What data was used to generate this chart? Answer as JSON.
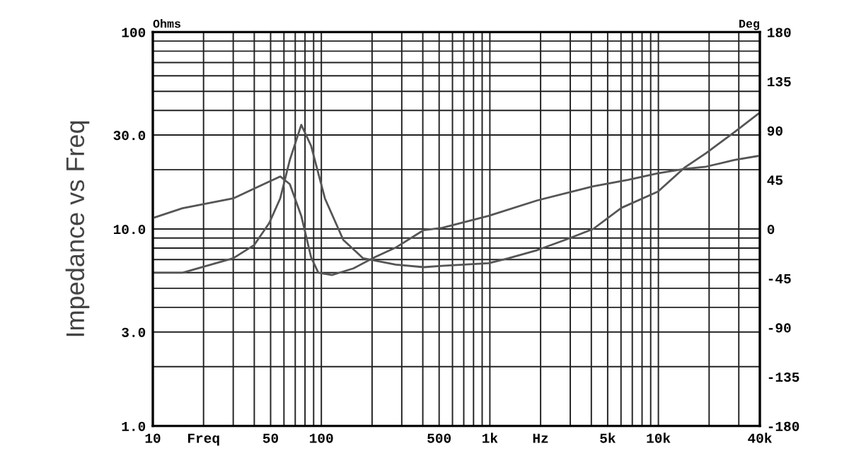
{
  "chart_data": {
    "type": "line",
    "ylabel": "Impedance vs Freq",
    "y2label": "Deg",
    "annotations": [
      "Ohms"
    ],
    "log": "xy",
    "grid": true,
    "marker": "none",
    "line_style": "solid",
    "xlim": [
      10,
      40000
    ],
    "ylim": [
      1,
      100
    ],
    "y2lim": [
      -180,
      180
    ],
    "xticks": [
      10,
      {
        "value": 20,
        "label": "Freq"
      },
      {
        "value": 30,
        "label": null
      },
      {
        "value": 40,
        "label": null
      },
      50,
      {
        "value": 60,
        "label": null
      },
      {
        "value": 70,
        "label": null
      },
      {
        "value": 80,
        "label": null
      },
      {
        "value": 90,
        "label": null
      },
      100,
      {
        "value": 200,
        "label": null
      },
      {
        "value": 300,
        "label": null
      },
      {
        "value": 400,
        "label": null
      },
      500,
      {
        "value": 600,
        "label": null
      },
      {
        "value": 700,
        "label": null
      },
      {
        "value": 800,
        "label": null
      },
      {
        "value": 900,
        "label": null
      },
      {
        "value": 1000,
        "label": "1k"
      },
      {
        "value": 2000,
        "label": "Hz"
      },
      {
        "value": 3000,
        "label": null
      },
      {
        "value": 4000,
        "label": null
      },
      {
        "value": 5000,
        "label": "5k"
      },
      {
        "value": 6000,
        "label": null
      },
      {
        "value": 7000,
        "label": null
      },
      {
        "value": 8000,
        "label": null
      },
      {
        "value": 9000,
        "label": null
      },
      {
        "value": 10000,
        "label": "10k"
      },
      {
        "value": 20000,
        "label": null
      },
      {
        "value": 30000,
        "label": null
      },
      {
        "value": 40000,
        "label": "40k"
      }
    ],
    "yticks": [
      {
        "value": 1,
        "label": "1.0"
      },
      {
        "value": 2,
        "label": null
      },
      {
        "value": 3,
        "label": "3.0"
      },
      {
        "value": 4,
        "label": null
      },
      {
        "value": 5,
        "label": null
      },
      {
        "value": 6,
        "label": null
      },
      {
        "value": 7,
        "label": null
      },
      {
        "value": 8,
        "label": null
      },
      {
        "value": 9,
        "label": null
      },
      {
        "value": 10,
        "label": "10.0"
      },
      {
        "value": 20,
        "label": null
      },
      {
        "value": 30,
        "label": "30.0"
      },
      {
        "value": 40,
        "label": null
      },
      {
        "value": 50,
        "label": null
      },
      {
        "value": 60,
        "label": null
      },
      {
        "value": 70,
        "label": null
      },
      {
        "value": 80,
        "label": null
      },
      {
        "value": 90,
        "label": null
      },
      100
    ],
    "y2ticks": [
      -180,
      -135,
      -90,
      -45,
      0,
      45,
      90,
      135,
      180
    ],
    "series": [
      {
        "color": "#555555",
        "x": [
          10,
          15,
          30,
          40,
          49,
          57,
          65,
          76,
          87,
          105,
          135,
          177,
          276,
          405,
          521,
          984,
          1290,
          1900,
          2790,
          4100,
          6030,
          9950,
          14400,
          19200,
          28200,
          40000
        ],
        "values": [
          6.0,
          6.0,
          7.1,
          8.3,
          10.7,
          14.3,
          22.4,
          33.8,
          26.4,
          14.3,
          8.8,
          7.1,
          6.6,
          6.4,
          6.5,
          6.7,
          7.1,
          7.8,
          8.8,
          10,
          12.8,
          15.5,
          20.6,
          24.3,
          31,
          39
        ]
      },
      {
        "color": "#555555",
        "axis": "y2",
        "x": [
          10,
          15,
          30,
          40,
          57,
          65,
          76,
          87,
          96,
          116,
          155,
          206,
          276,
          405,
          521,
          984,
          1900,
          4100,
          6640,
          9950,
          14400,
          19200,
          28200,
          40000
        ],
        "values": [
          10,
          19,
          28,
          37,
          48,
          41,
          12,
          -26,
          -40,
          -42,
          -36,
          -26,
          -17,
          -1,
          1,
          12,
          26,
          39,
          45,
          51,
          55,
          57,
          63,
          67
        ]
      }
    ]
  }
}
